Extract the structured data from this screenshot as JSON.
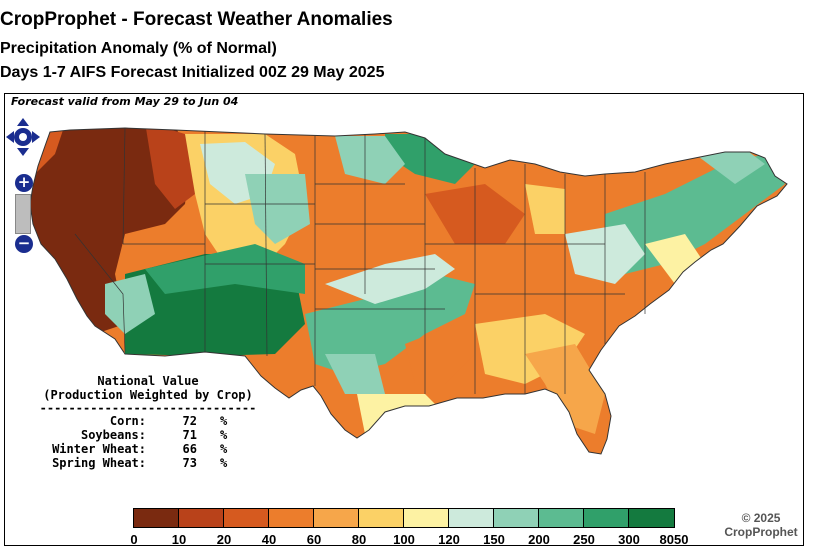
{
  "title": "CropProphet - Forecast Weather Anomalies",
  "subtitle": "Precipitation Anomaly (% of Normal)",
  "subtitle2": "Days 1-7 AIFS Forecast Initialized 00Z 29 May 2025",
  "valid_text": "Forecast valid from May 29 to Jun 04",
  "national": {
    "heading1": "National Value",
    "heading2": "(Production Weighted by Crop)",
    "rule": "------------------------------",
    "crops": [
      {
        "label": "Corn:",
        "value": "72",
        "unit": "%"
      },
      {
        "label": "Soybeans:",
        "value": "71",
        "unit": "%"
      },
      {
        "label": "Winter Wheat:",
        "value": "66",
        "unit": "%"
      },
      {
        "label": "Spring Wheat:",
        "value": "73",
        "unit": "%"
      }
    ]
  },
  "legend": {
    "ticks": [
      "0",
      "10",
      "20",
      "40",
      "60",
      "80",
      "100",
      "120",
      "150",
      "200",
      "250",
      "300",
      "8050"
    ],
    "colors": [
      "#7a2a10",
      "#b9421a",
      "#d65a1f",
      "#ec7d2c",
      "#f6a64a",
      "#fbd166",
      "#fdf2a3",
      "#cdeadc",
      "#8fd1b6",
      "#5cbb91",
      "#30a06a",
      "#147a3f"
    ]
  },
  "copyright": {
    "line1": "© 2025",
    "line2": "CropProphet"
  },
  "nav_icons": [
    "pan-icon",
    "zoom-in-icon",
    "zoom-slider",
    "zoom-out-icon"
  ]
}
